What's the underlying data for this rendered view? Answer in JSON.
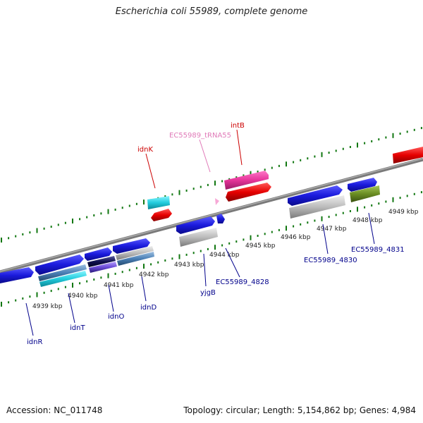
{
  "title": "Escherichia coli 55989, complete genome",
  "accession": "Accession: NC_011748",
  "topology": "Topology: circular; Length: 5,154,862 bp; Genes: 4,984",
  "tick_labels": [
    "4939 kbp",
    "4940 kbp",
    "4941 kbp",
    "4942 kbp",
    "4943 kbp",
    "4944 kbp",
    "4945 kbp",
    "4946 kbp",
    "4947 kbp",
    "4948 kbp",
    "4949 kbp"
  ],
  "gene_labels": {
    "idnR": "idnR",
    "idnT": "idnT",
    "idnO": "idnO",
    "idnD": "idnD",
    "idnK": "idnK",
    "yjgB": "yjgB",
    "EC55989_4828": "EC55989_4828",
    "EC55989_tRNA55": "EC55989_tRNA55",
    "intB": "intB",
    "EC55989_4830": "EC55989_4830",
    "EC55989_4831": "EC55989_4831"
  },
  "colors": {
    "forward_gene": "#1a1adc",
    "gene_label_blue": "#00008b",
    "gene_label_red": "#cc0000",
    "trna_label": "#e07ab8",
    "intB": "#e6359a",
    "cog_red": "#e60000",
    "cog_cyan": "#22ccdd",
    "cog_gray": "#bbbbbb",
    "cog_olive": "#6b8e23",
    "backbone": "#808080",
    "ticks": "#117711"
  }
}
